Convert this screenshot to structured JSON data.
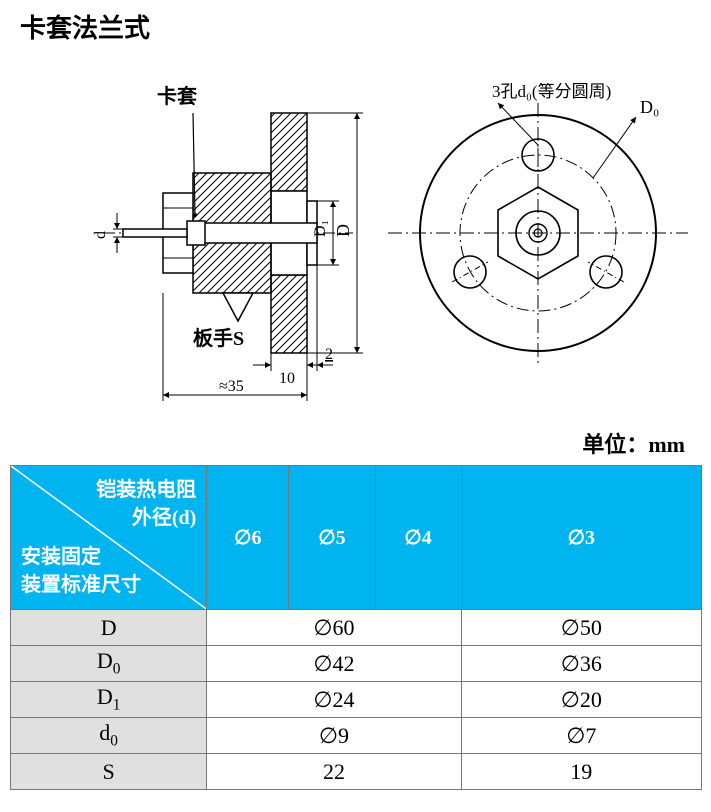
{
  "title": "卡套法兰式",
  "unit_label": "单位：mm",
  "diagram": {
    "left_view": {
      "label_ferrule": "卡套",
      "label_wrench": "板手S",
      "dim_left_small": "d",
      "dim_right_inner": "D₁",
      "dim_right_outer": "D",
      "dim_bottom_inner": "10",
      "dim_bottom_outer": "≈35",
      "dim_bottom_small": "2"
    },
    "right_view": {
      "label_holes": "3孔d₀(等分圆周)",
      "label_pcd": "D₀"
    },
    "colors": {
      "stroke": "#000000",
      "hatch": "#000000",
      "centerline": "#000000",
      "bg": "#ffffff"
    }
  },
  "table": {
    "header": {
      "diag_top_line1": "铠装热电阻",
      "diag_top_line2": "外径(d)",
      "diag_bot_line1": "安装固定",
      "diag_bot_line2": "装置标准尺寸",
      "cols": [
        "∅6",
        "∅5",
        "∅4",
        "∅3"
      ]
    },
    "rows": [
      {
        "label": "D",
        "sub": "",
        "g1": "∅60",
        "g2": "∅50"
      },
      {
        "label": "D",
        "sub": "0",
        "g1": "∅42",
        "g2": "∅36"
      },
      {
        "label": "D",
        "sub": "1",
        "g1": "∅24",
        "g2": "∅20"
      },
      {
        "label": "d",
        "sub": "0",
        "g1": "∅9",
        "g2": "∅7"
      },
      {
        "label": "S",
        "sub": "",
        "g1": "22",
        "g2": "19"
      }
    ],
    "colors": {
      "header_bg": "#00b4f0",
      "header_fg": "#ffffff",
      "rowlabel_bg": "#e0e0e0",
      "cell_bg": "#ffffff",
      "border": "#777777"
    }
  }
}
